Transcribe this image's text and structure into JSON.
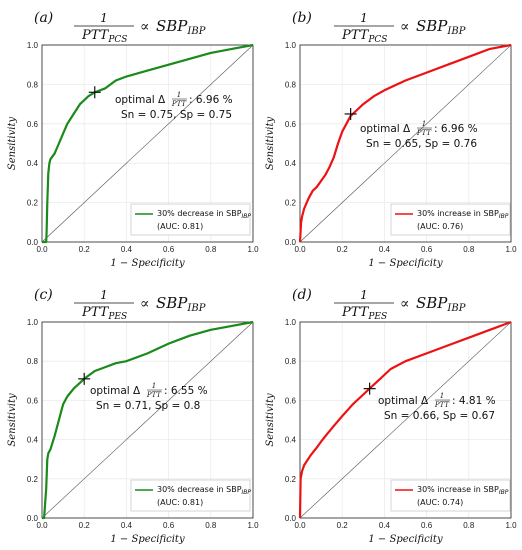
{
  "figure": {
    "common": {
      "x_label": "1 − Specificity",
      "y_label": "Sensitivity",
      "x_ticks": [
        "0.0",
        "0.2",
        "0.4",
        "0.6",
        "0.8",
        "1.0"
      ],
      "y_ticks": [
        "0.0",
        "0.2",
        "0.4",
        "0.6",
        "0.8",
        "1.0"
      ],
      "optimal_word": "optimal Δ",
      "frac_num": "1",
      "frac_den": "PTT",
      "proportional": "∝",
      "sbp": "SBP",
      "sbp_sub": "IBP",
      "title_num": "1",
      "title_den": "PTT"
    }
  },
  "chart_data": [
    {
      "type": "line",
      "panel": "(a)",
      "title_den_sub": "PCS",
      "color": "#1a8a1a",
      "xlim": [
        0,
        1
      ],
      "ylim": [
        0,
        1
      ],
      "grid": true,
      "legend_position": "bottom-right",
      "series": [
        {
          "name": "30% decrease in SBP",
          "name_sub": "IBP",
          "auc_text": "(AUC: 0.81)",
          "x": [
            0.0,
            0.02,
            0.022,
            0.025,
            0.03,
            0.035,
            0.04,
            0.06,
            0.08,
            0.1,
            0.12,
            0.15,
            0.18,
            0.2,
            0.22,
            0.25,
            0.3,
            0.35,
            0.4,
            0.5,
            0.6,
            0.7,
            0.8,
            0.9,
            1.0
          ],
          "y": [
            0.0,
            0.0,
            0.05,
            0.2,
            0.35,
            0.4,
            0.42,
            0.45,
            0.5,
            0.55,
            0.6,
            0.65,
            0.7,
            0.72,
            0.74,
            0.76,
            0.78,
            0.82,
            0.84,
            0.87,
            0.9,
            0.93,
            0.96,
            0.98,
            1.0
          ]
        }
      ],
      "optimal": {
        "x": 0.25,
        "y": 0.76,
        "value": "6.96 %",
        "sn_sp": "Sn = 0.75, Sp = 0.75"
      }
    },
    {
      "type": "line",
      "panel": "(b)",
      "title_den_sub": "PCS",
      "color": "#ee1111",
      "xlim": [
        0,
        1
      ],
      "ylim": [
        0,
        1
      ],
      "grid": true,
      "legend_position": "bottom-right",
      "series": [
        {
          "name": "30% increase in SBP",
          "name_sub": "IBP",
          "auc_text": "(AUC: 0.76)",
          "x": [
            0.0,
            0.005,
            0.01,
            0.02,
            0.04,
            0.06,
            0.08,
            0.1,
            0.12,
            0.14,
            0.16,
            0.18,
            0.2,
            0.22,
            0.24,
            0.27,
            0.3,
            0.35,
            0.4,
            0.5,
            0.6,
            0.7,
            0.8,
            0.9,
            1.0
          ],
          "y": [
            0.0,
            0.1,
            0.13,
            0.17,
            0.22,
            0.26,
            0.28,
            0.31,
            0.34,
            0.38,
            0.43,
            0.5,
            0.56,
            0.6,
            0.64,
            0.67,
            0.7,
            0.74,
            0.77,
            0.82,
            0.86,
            0.9,
            0.94,
            0.98,
            1.0
          ]
        }
      ],
      "optimal": {
        "x": 0.24,
        "y": 0.65,
        "value": "6.96 %",
        "sn_sp": "Sn = 0.65, Sp = 0.76"
      }
    },
    {
      "type": "line",
      "panel": "(c)",
      "title_den_sub": "PES",
      "color": "#1a8a1a",
      "xlim": [
        0,
        1
      ],
      "ylim": [
        0,
        1
      ],
      "grid": true,
      "legend_position": "bottom-right",
      "series": [
        {
          "name": "30% decrease in SBP",
          "name_sub": "IBP",
          "auc_text": "(AUC: 0.81)",
          "x": [
            0.0,
            0.01,
            0.02,
            0.025,
            0.03,
            0.04,
            0.06,
            0.08,
            0.1,
            0.12,
            0.15,
            0.18,
            0.2,
            0.25,
            0.3,
            0.35,
            0.4,
            0.5,
            0.6,
            0.7,
            0.8,
            0.9,
            1.0
          ],
          "y": [
            0.0,
            0.0,
            0.15,
            0.3,
            0.33,
            0.35,
            0.42,
            0.5,
            0.58,
            0.62,
            0.66,
            0.69,
            0.71,
            0.75,
            0.77,
            0.79,
            0.8,
            0.84,
            0.89,
            0.93,
            0.96,
            0.98,
            1.0
          ]
        }
      ],
      "optimal": {
        "x": 0.2,
        "y": 0.71,
        "value": "6.55 %",
        "sn_sp": "Sn = 0.71, Sp = 0.8"
      }
    },
    {
      "type": "line",
      "panel": "(d)",
      "title_den_sub": "PES",
      "color": "#ee1111",
      "xlim": [
        0,
        1
      ],
      "ylim": [
        0,
        1
      ],
      "grid": true,
      "legend_position": "bottom-right",
      "series": [
        {
          "name": "30% increase in SBP",
          "name_sub": "IBP",
          "auc_text": "(AUC: 0.74)",
          "x": [
            0.0,
            0.003,
            0.01,
            0.02,
            0.05,
            0.08,
            0.1,
            0.13,
            0.16,
            0.2,
            0.25,
            0.3,
            0.33,
            0.38,
            0.43,
            0.5,
            0.6,
            0.7,
            0.8,
            0.9,
            1.0
          ],
          "y": [
            0.0,
            0.2,
            0.24,
            0.27,
            0.32,
            0.36,
            0.39,
            0.43,
            0.47,
            0.52,
            0.58,
            0.63,
            0.66,
            0.71,
            0.76,
            0.8,
            0.84,
            0.88,
            0.92,
            0.96,
            1.0
          ]
        }
      ],
      "optimal": {
        "x": 0.33,
        "y": 0.66,
        "value": "4.81 %",
        "sn_sp": "Sn = 0.66, Sp = 0.67"
      }
    }
  ]
}
